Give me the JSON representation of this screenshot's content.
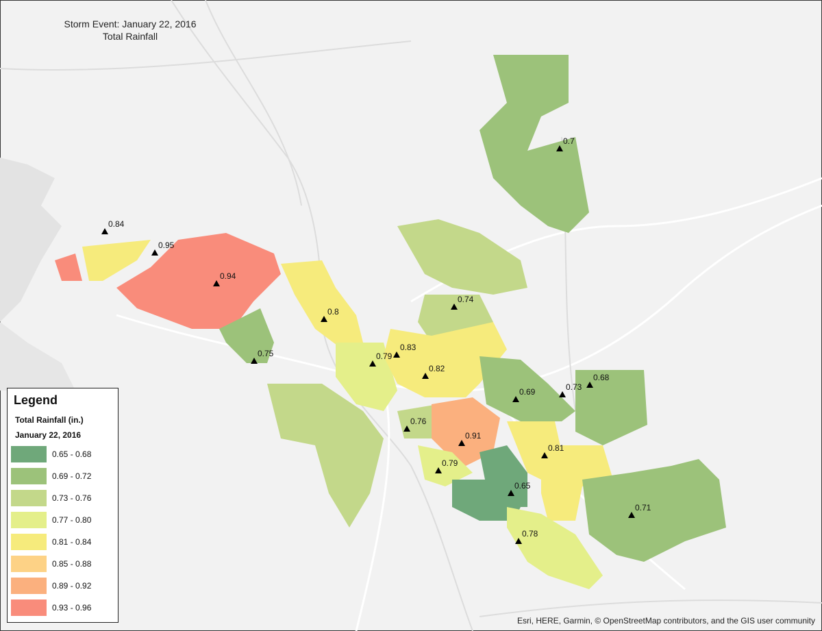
{
  "title": "Storm Event: January 22, 2016",
  "subtitle": "Total Rainfall",
  "legend": {
    "title": "Legend",
    "field": "Total Rainfall (in.)",
    "date": "January 22, 2016",
    "classes": [
      {
        "label": "0.65 - 0.68",
        "color": "#6fa87a"
      },
      {
        "label": "0.69 - 0.72",
        "color": "#9cc27a"
      },
      {
        "label": "0.73 - 0.76",
        "color": "#c3d88a"
      },
      {
        "label": "0.77 - 0.80",
        "color": "#e4ef8a"
      },
      {
        "label": "0.81 - 0.84",
        "color": "#f6eb7c"
      },
      {
        "label": "0.85 - 0.88",
        "color": "#fdd286"
      },
      {
        "label": "0.89 - 0.92",
        "color": "#fbb07e"
      },
      {
        "label": "0.93 - 0.96",
        "color": "#f98c7b"
      }
    ]
  },
  "gauges": [
    0.84,
    0.95,
    0.94,
    0.8,
    0.75,
    0.79,
    0.83,
    0.82,
    0.74,
    0.7,
    0.69,
    0.73,
    0.68,
    0.76,
    0.91,
    0.81,
    0.79,
    0.65,
    0.71,
    0.78
  ],
  "attribution": "Esri, HERE, Garmin, © OpenStreetMap contributors, and the GIS user community"
}
